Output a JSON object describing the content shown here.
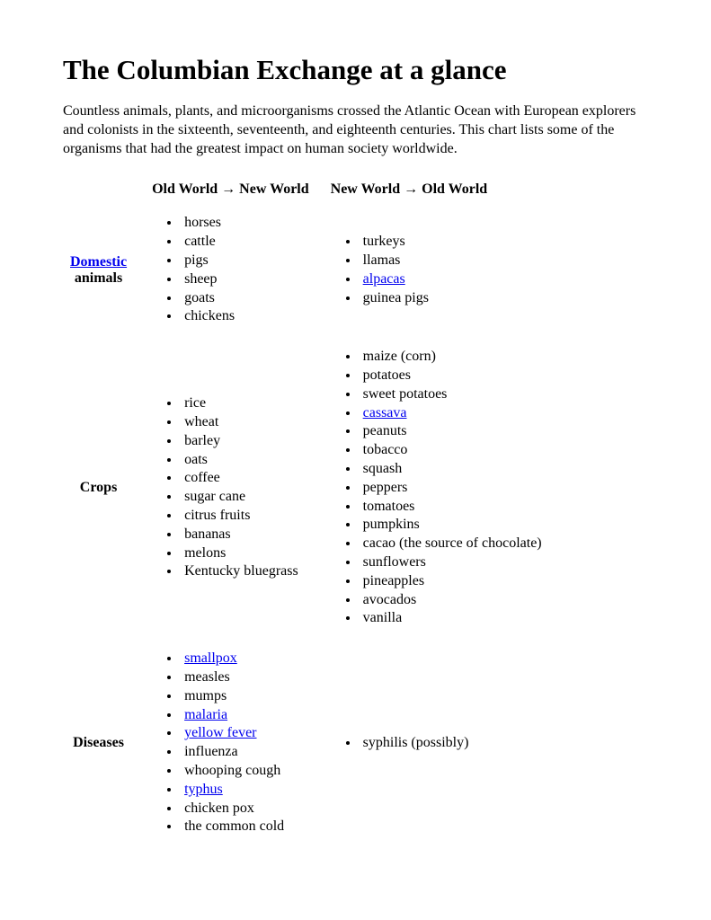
{
  "title": "The Columbian Exchange at a glance",
  "intro": "Countless animals, plants, and microorganisms crossed the Atlantic Ocean with European explorers and colonists in the sixteenth, seventeenth, and eighteenth centuries. This chart lists some of the organisms that had the greatest impact on human society worldwide.",
  "columns": {
    "old_to_new": "Old World → New World",
    "new_to_old": "New World → Old World"
  },
  "rows": [
    {
      "label_link": "Domestic",
      "label_plain": "animals",
      "old_to_new": [
        {
          "text": "horses"
        },
        {
          "text": "cattle"
        },
        {
          "text": "pigs"
        },
        {
          "text": "sheep"
        },
        {
          "text": "goats"
        },
        {
          "text": "chickens"
        }
      ],
      "new_to_old": [
        {
          "text": "turkeys"
        },
        {
          "text": "llamas"
        },
        {
          "text": "alpacas",
          "link": true
        },
        {
          "text": "guinea pigs"
        }
      ]
    },
    {
      "label_plain": "Crops",
      "old_to_new": [
        {
          "text": "rice"
        },
        {
          "text": "wheat"
        },
        {
          "text": "barley"
        },
        {
          "text": "oats"
        },
        {
          "text": "coffee"
        },
        {
          "text": "sugar cane"
        },
        {
          "text": "citrus fruits"
        },
        {
          "text": "bananas"
        },
        {
          "text": "melons"
        },
        {
          "text": "Kentucky bluegrass"
        }
      ],
      "new_to_old": [
        {
          "text": "maize (corn)"
        },
        {
          "text": "potatoes"
        },
        {
          "text": "sweet potatoes"
        },
        {
          "text": "cassava",
          "link": true
        },
        {
          "text": "peanuts"
        },
        {
          "text": "tobacco"
        },
        {
          "text": "squash"
        },
        {
          "text": "peppers"
        },
        {
          "text": "tomatoes"
        },
        {
          "text": "pumpkins"
        },
        {
          "text": "cacao (the source of chocolate)"
        },
        {
          "text": "sunflowers"
        },
        {
          "text": "pineapples"
        },
        {
          "text": "avocados"
        },
        {
          "text": "vanilla"
        }
      ]
    },
    {
      "label_plain": "Diseases",
      "old_to_new": [
        {
          "text": "smallpox",
          "link": true
        },
        {
          "text": "measles"
        },
        {
          "text": "mumps"
        },
        {
          "text": "malaria",
          "link": true
        },
        {
          "text": "yellow fever",
          "link": true
        },
        {
          "text": "influenza"
        },
        {
          "text": "whooping cough"
        },
        {
          "text": "typhus",
          "link": true
        },
        {
          "text": "chicken pox"
        },
        {
          "text": "the common cold"
        }
      ],
      "new_to_old": [
        {
          "text": "syphilis (possibly)"
        }
      ]
    }
  ]
}
